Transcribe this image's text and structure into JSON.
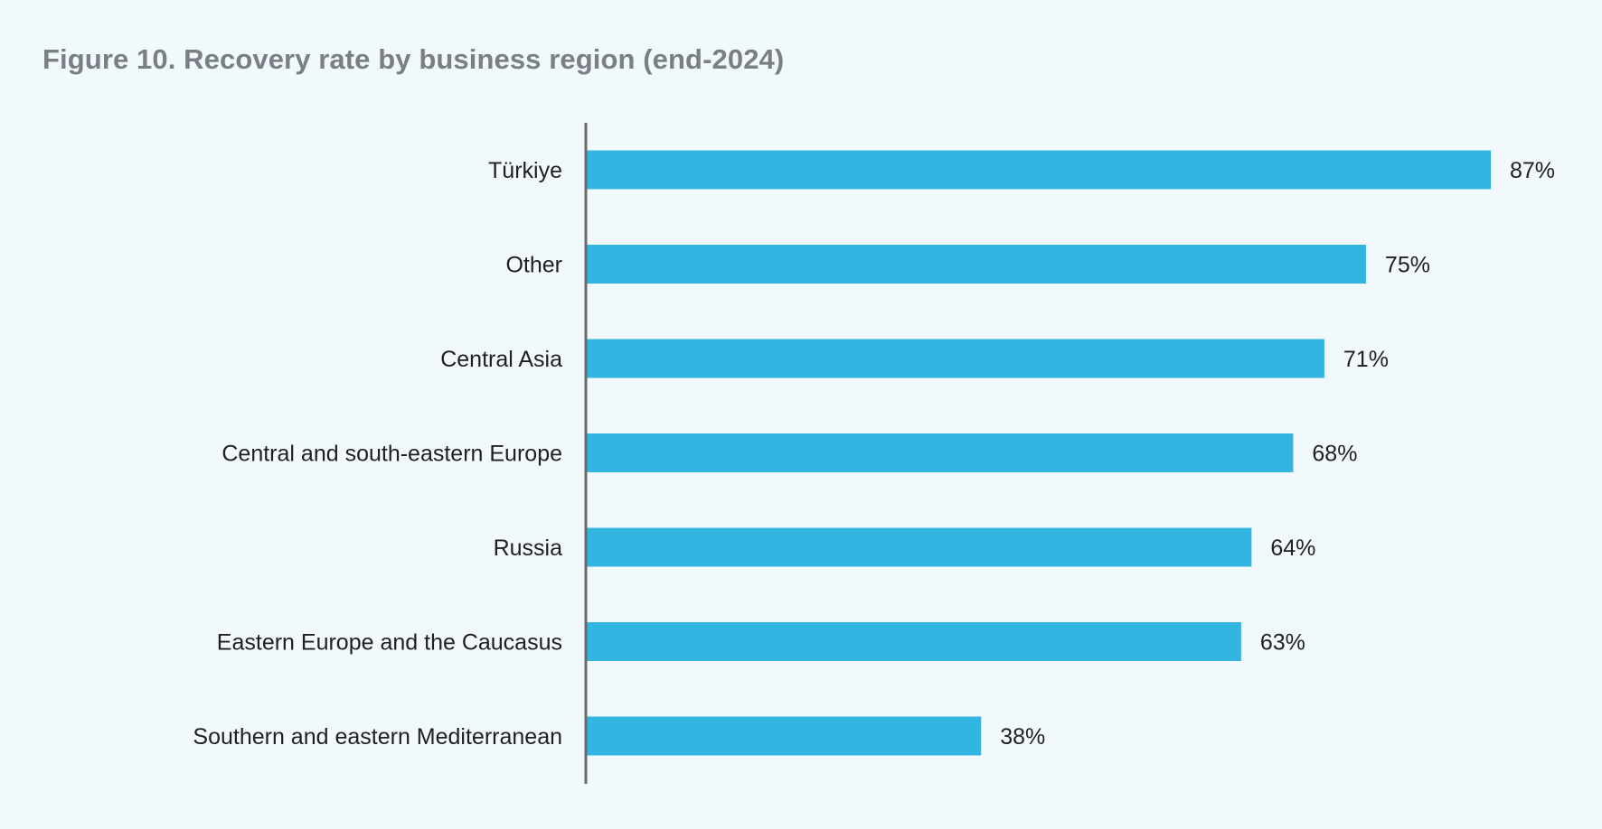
{
  "title": "Figure 10. Recovery rate by business region (end-2024)",
  "chart_data": {
    "type": "bar",
    "orientation": "horizontal",
    "title": "Figure 10. Recovery rate by business region (end-2024)",
    "categories": [
      "Türkiye",
      "Other",
      "Central Asia",
      "Central and south-eastern Europe",
      "Russia",
      "Eastern Europe and the Caucasus",
      "Southern and eastern Mediterranean"
    ],
    "values": [
      87,
      75,
      71,
      68,
      64,
      63,
      38
    ],
    "value_labels": [
      "87%",
      "75%",
      "71%",
      "68%",
      "64%",
      "63%",
      "38%"
    ],
    "unit": "%",
    "xlim": [
      0,
      100
    ],
    "xlabel": "",
    "ylabel": "",
    "grid": false,
    "legend": "none",
    "bar_color": "#33b5e1",
    "axis_color": "#6b6b6b"
  }
}
